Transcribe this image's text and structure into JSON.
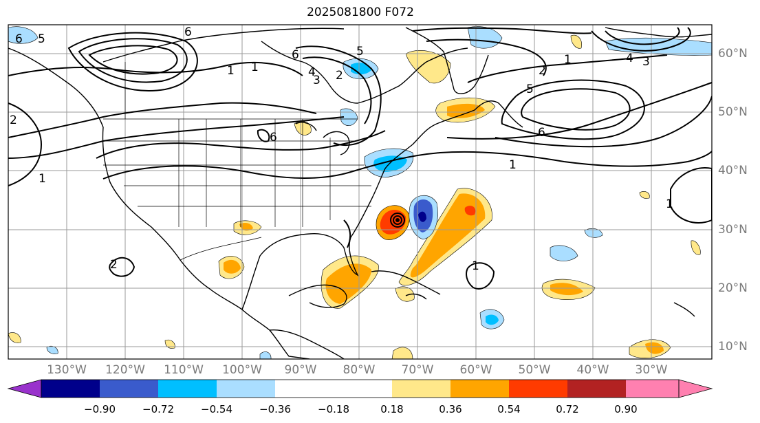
{
  "title": "2025081800 F072",
  "map": {
    "projection": "PlateCarree",
    "extent_lon": [
      -140,
      -20
    ],
    "extent_lat": [
      7,
      65
    ],
    "features": [
      "coastlines",
      "country borders",
      "US state borders",
      "gridlines"
    ]
  },
  "axes": {
    "lon_ticks": [
      "130°W",
      "120°W",
      "110°W",
      "100°W",
      "90°W",
      "80°W",
      "70°W",
      "60°W",
      "50°W",
      "40°W",
      "30°W"
    ],
    "lat_ticks": [
      "60°N",
      "50°N",
      "40°N",
      "30°N",
      "20°N",
      "10°N"
    ]
  },
  "colorbar": {
    "tick_labels": [
      "−0.90",
      "−0.72",
      "−0.54",
      "−0.36",
      "−0.18",
      "0.18",
      "0.36",
      "0.54",
      "0.72",
      "0.90"
    ],
    "levels": [
      -0.9,
      -0.72,
      -0.54,
      -0.36,
      -0.18,
      0.18,
      0.36,
      0.54,
      0.72,
      0.9
    ],
    "colors": [
      "#9932cc",
      "#00008b",
      "#3a5bcc",
      "#00bfff",
      "#aadeff",
      "#ffffff",
      "#ffe88a",
      "#ffa500",
      "#ff3b00",
      "#b22222",
      "#ff80b0"
    ],
    "extend": "both"
  },
  "contour_labels": [
    "6",
    "5",
    "6",
    "1",
    "4",
    "3",
    "2",
    "1",
    "6",
    "2",
    "5",
    "6",
    "2",
    "1",
    "1",
    "1",
    "1",
    "1",
    "5",
    "6",
    "4",
    "3",
    "2"
  ],
  "notable": {
    "tropical_cyclone": "closed low near 31°N, 75°W with dipole anomaly"
  }
}
